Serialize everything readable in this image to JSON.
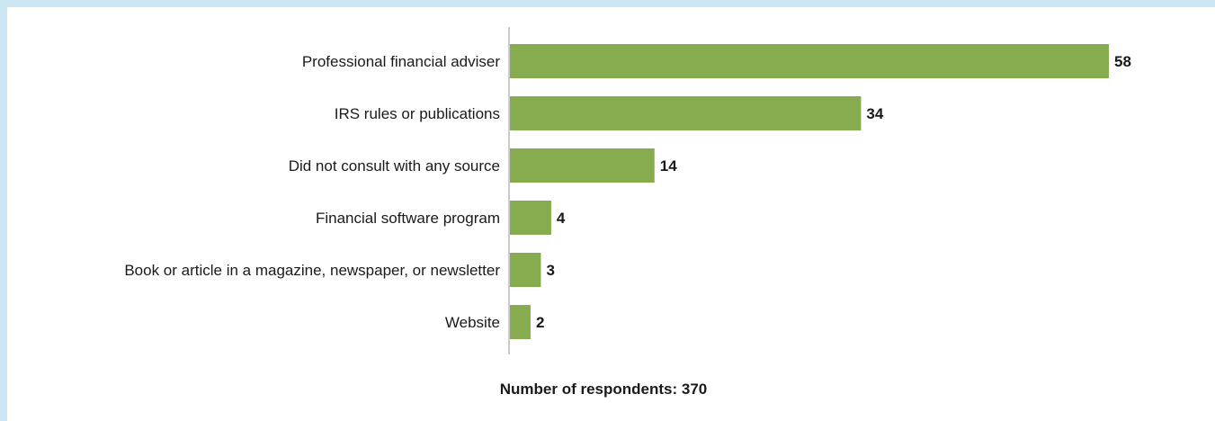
{
  "chart_data": {
    "type": "bar",
    "orientation": "horizontal",
    "categories": [
      "Professional financial adviser",
      "IRS rules or publications",
      "Did not consult with any source",
      "Financial software program",
      "Book or article in a magazine, newspaper, or newsletter",
      "Website"
    ],
    "values": [
      58,
      34,
      14,
      4,
      3,
      2
    ],
    "title": "",
    "xlabel": "",
    "ylabel": "",
    "xlim": [
      0,
      58
    ],
    "grid": false,
    "bar_color": "#87ab4f",
    "note": "Number of respondents: 370"
  }
}
